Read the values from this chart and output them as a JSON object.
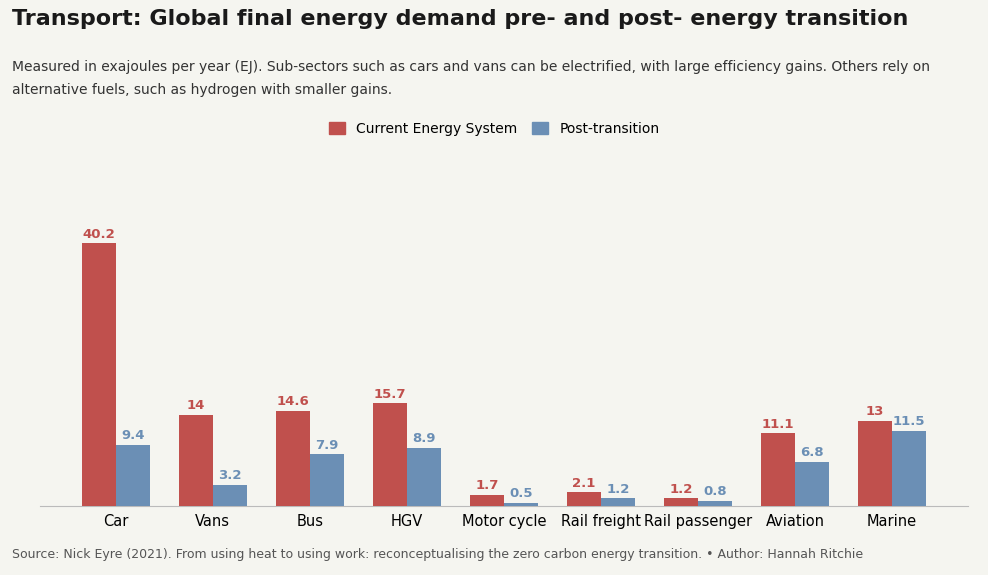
{
  "title": "Transport: Global final energy demand pre- and post- energy transition",
  "subtitle_line1": "Measured in exajoules per year (EJ). Sub-sectors such as cars and vans can be electrified, with large efficiency gains. Others rely on",
  "subtitle_line2": "alternative fuels, such as hydrogen with smaller gains.",
  "source": "Source: Nick Eyre (2021). From using heat to using work: reconceptualising the zero carbon energy transition. • Author: Hannah Ritchie",
  "legend_labels": [
    "Current Energy System",
    "Post-transition"
  ],
  "categories": [
    "Car",
    "Vans",
    "Bus",
    "HGV",
    "Motor cycle",
    "Rail freight",
    "Rail passenger",
    "Aviation",
    "Marine"
  ],
  "current": [
    40.2,
    14.0,
    14.6,
    15.7,
    1.7,
    2.1,
    1.2,
    11.1,
    13.0
  ],
  "post": [
    9.4,
    3.2,
    7.9,
    8.9,
    0.5,
    1.2,
    0.8,
    6.8,
    11.5
  ],
  "current_labels": [
    "40.2",
    "14",
    "14.6",
    "15.7",
    "1.7",
    "2.1",
    "1.2",
    "11.1",
    "13"
  ],
  "post_labels": [
    "9.4",
    "3.2",
    "7.9",
    "8.9",
    "0.5",
    "1.2",
    "0.8",
    "6.8",
    "11.5"
  ],
  "color_current": "#c0504d",
  "color_post": "#6b8fb5",
  "background_color": "#f5f5f0",
  "ylim": [
    0,
    44
  ],
  "bar_width": 0.35,
  "title_fontsize": 16,
  "subtitle_fontsize": 10,
  "source_fontsize": 9,
  "label_fontsize": 9.5
}
